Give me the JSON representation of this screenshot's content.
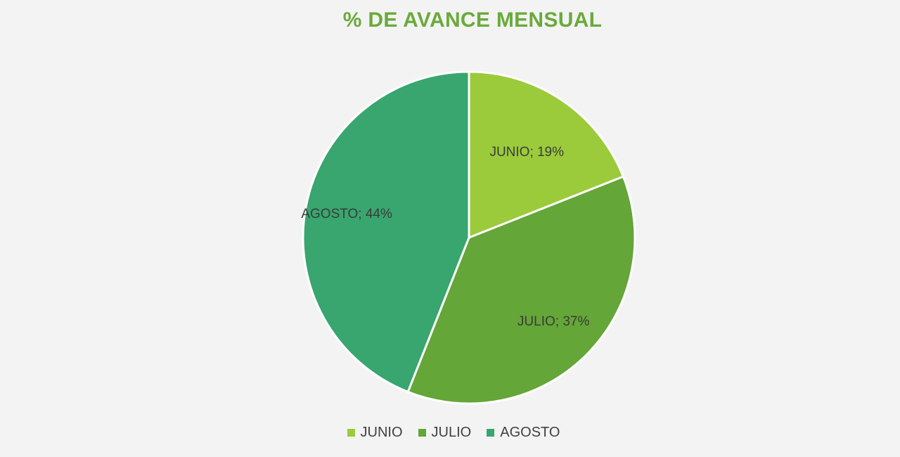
{
  "chart_data": {
    "type": "pie",
    "title": "% DE AVANCE MENSUAL",
    "categories": [
      "JUNIO",
      "JULIO",
      "AGOSTO"
    ],
    "values": [
      19,
      37,
      44
    ],
    "data_labels": [
      "JUNIO;  19%",
      "JULIO;  37%",
      "AGOSTO; 44%"
    ],
    "colors": [
      "#9bcb3b",
      "#64a637",
      "#38a66e"
    ],
    "legend_position": "bottom",
    "legend": [
      "JUNIO",
      "JULIO",
      "AGOSTO"
    ]
  }
}
